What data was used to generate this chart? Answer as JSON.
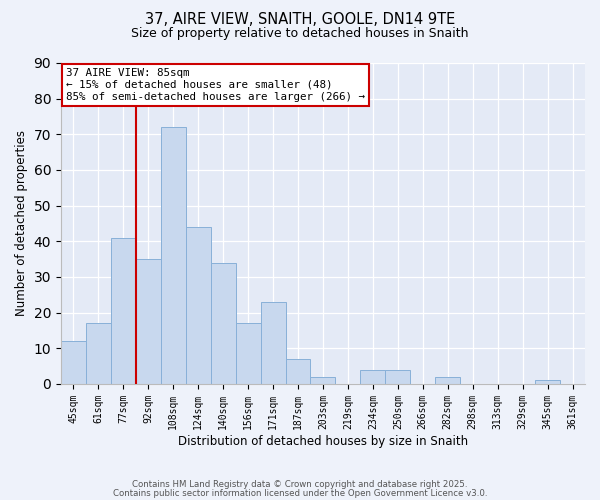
{
  "title": "37, AIRE VIEW, SNAITH, GOOLE, DN14 9TE",
  "subtitle": "Size of property relative to detached houses in Snaith",
  "xlabel": "Distribution of detached houses by size in Snaith",
  "ylabel": "Number of detached properties",
  "bar_labels": [
    "45sqm",
    "61sqm",
    "77sqm",
    "92sqm",
    "108sqm",
    "124sqm",
    "140sqm",
    "156sqm",
    "171sqm",
    "187sqm",
    "203sqm",
    "219sqm",
    "234sqm",
    "250sqm",
    "266sqm",
    "282sqm",
    "298sqm",
    "313sqm",
    "329sqm",
    "345sqm",
    "361sqm"
  ],
  "bar_values": [
    12,
    17,
    41,
    35,
    72,
    44,
    34,
    17,
    23,
    7,
    2,
    0,
    4,
    4,
    0,
    2,
    0,
    0,
    0,
    1,
    0
  ],
  "bar_color": "#c8d8ee",
  "bar_edge_color": "#88b0d8",
  "vline_color": "#cc0000",
  "annotation_line1": "37 AIRE VIEW: 85sqm",
  "annotation_line2": "← 15% of detached houses are smaller (48)",
  "annotation_line3": "85% of semi-detached houses are larger (266) →",
  "annotation_box_color": "#ffffff",
  "annotation_box_edge": "#cc0000",
  "ylim": [
    0,
    90
  ],
  "yticks": [
    0,
    10,
    20,
    30,
    40,
    50,
    60,
    70,
    80,
    90
  ],
  "bg_color": "#eef2fa",
  "plot_bg_color": "#e4eaf6",
  "grid_color": "#ffffff",
  "footer_line1": "Contains HM Land Registry data © Crown copyright and database right 2025.",
  "footer_line2": "Contains public sector information licensed under the Open Government Licence v3.0."
}
